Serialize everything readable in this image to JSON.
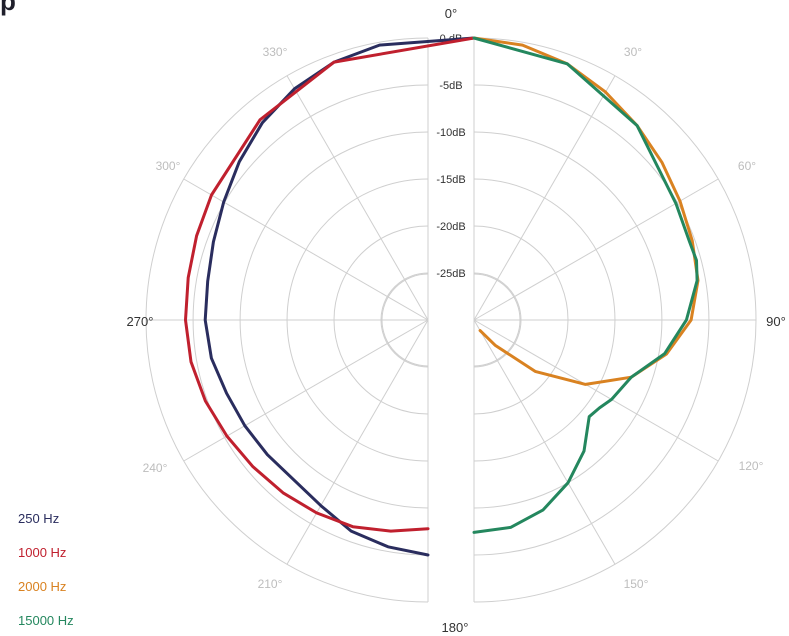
{
  "partial_title": "p",
  "chart_data": {
    "type": "polar-line",
    "title": "p",
    "radial_unit": "dB",
    "radial_range": [
      -30,
      0
    ],
    "radial_ticks": [
      {
        "value": 0,
        "label": "0 dB"
      },
      {
        "value": -5,
        "label": "-5dB"
      },
      {
        "value": -10,
        "label": "-10dB"
      },
      {
        "value": -15,
        "label": "-15dB"
      },
      {
        "value": -20,
        "label": "-20dB"
      },
      {
        "value": -25,
        "label": "-25dB"
      }
    ],
    "angle_labels": [
      {
        "angle": 0,
        "label": "0°"
      },
      {
        "angle": 30,
        "label": "30°"
      },
      {
        "angle": 60,
        "label": "60°"
      },
      {
        "angle": 90,
        "label": "90°"
      },
      {
        "angle": 120,
        "label": "120°"
      },
      {
        "angle": 150,
        "label": "150°"
      },
      {
        "angle": 180,
        "label": "180°"
      },
      {
        "angle": 210,
        "label": "210°"
      },
      {
        "angle": 240,
        "label": "240°"
      },
      {
        "angle": 270,
        "label": "270°"
      },
      {
        "angle": 300,
        "label": "300°"
      },
      {
        "angle": 330,
        "label": "330°"
      }
    ],
    "grid": true,
    "legend_position": "bottom-left",
    "series": [
      {
        "name": "250 Hz",
        "color": "#2a2d5e",
        "side": "left",
        "points": [
          [
            0,
            0
          ],
          [
            -10,
            -0.3
          ],
          [
            -20,
            -0.8
          ],
          [
            -30,
            -1.6
          ],
          [
            -40,
            -2.6
          ],
          [
            -50,
            -3.8
          ],
          [
            -60,
            -4.9
          ],
          [
            -70,
            -5.7
          ],
          [
            -80,
            -6.2
          ],
          [
            -90,
            -6.3
          ],
          [
            -100,
            -6.6
          ],
          [
            -110,
            -7.2
          ],
          [
            -120,
            -7.5
          ],
          [
            -130,
            -7.7
          ],
          [
            -140,
            -7.8
          ],
          [
            -150,
            -7.2
          ],
          [
            -160,
            -6.1
          ],
          [
            -170,
            -5.5
          ],
          [
            -180,
            -5.0
          ]
        ]
      },
      {
        "name": "1000 Hz",
        "color": "#c0202e",
        "side": "left",
        "points": [
          [
            0,
            0
          ],
          [
            -20,
            -0.8
          ],
          [
            -40,
            -2.2
          ],
          [
            -60,
            -3.4
          ],
          [
            -70,
            -3.8
          ],
          [
            -80,
            -4.1
          ],
          [
            -90,
            -4.2
          ],
          [
            -100,
            -4.4
          ],
          [
            -110,
            -4.8
          ],
          [
            -120,
            -5.3
          ],
          [
            -130,
            -5.7
          ],
          [
            -140,
            -6.0
          ],
          [
            -150,
            -6.3
          ],
          [
            -160,
            -6.6
          ],
          [
            -170,
            -7.2
          ],
          [
            -180,
            -7.8
          ]
        ]
      },
      {
        "name": "2000 Hz",
        "color": "#d98221",
        "side": "right",
        "points": [
          [
            0,
            0
          ],
          [
            10,
            -0.3
          ],
          [
            20,
            -1.0
          ],
          [
            30,
            -2.0
          ],
          [
            40,
            -3.0
          ],
          [
            50,
            -3.9
          ],
          [
            60,
            -4.7
          ],
          [
            70,
            -5.3
          ],
          [
            80,
            -5.8
          ],
          [
            90,
            -6.9
          ],
          [
            100,
            -9.2
          ],
          [
            110,
            -12.2
          ],
          [
            120,
            -16.3
          ],
          [
            130,
            -21.5
          ],
          [
            140,
            -26.5
          ],
          [
            150,
            -28.7
          ]
        ]
      },
      {
        "name": "15000 Hz",
        "color": "#24875e",
        "side": "right",
        "points": [
          [
            0,
            0
          ],
          [
            20,
            -1.0
          ],
          [
            40,
            -3.0
          ],
          [
            60,
            -5.2
          ],
          [
            70,
            -5.6
          ],
          [
            75,
            -5.5
          ],
          [
            80,
            -5.9
          ],
          [
            90,
            -7.4
          ],
          [
            100,
            -9.4
          ],
          [
            110,
            -12.2
          ],
          [
            120,
            -13.1
          ],
          [
            125,
            -13.7
          ],
          [
            130,
            -14.0
          ],
          [
            140,
            -11.8
          ],
          [
            150,
            -10.0
          ],
          [
            160,
            -8.5
          ],
          [
            170,
            -7.6
          ],
          [
            180,
            -7.4
          ]
        ]
      }
    ]
  }
}
